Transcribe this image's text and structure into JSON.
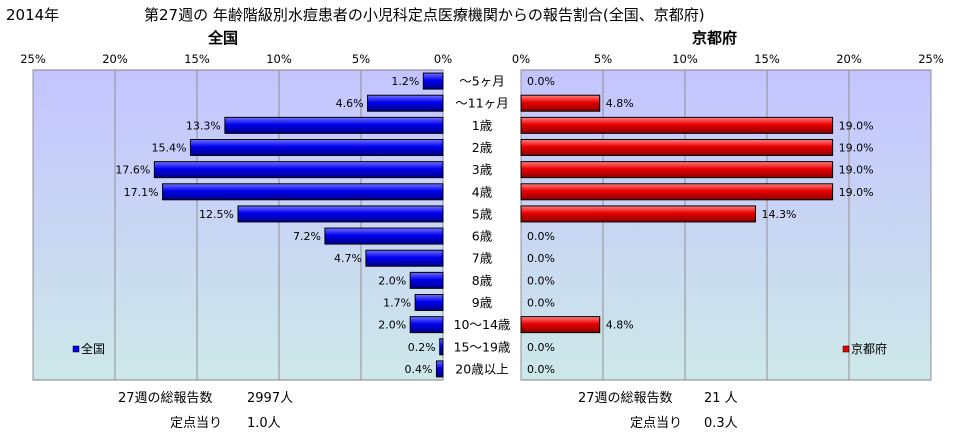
{
  "header": {
    "year": "2014年",
    "title": "第27週の 年齢階級別水痘患者の小児科定点医療機関からの報告割合(全国、京都府)"
  },
  "colors": {
    "plot_gradient_top": "#c4c4ff",
    "plot_gradient_bottom": "#cde8e8",
    "national_bar": "#0000ee",
    "kyoto_bar": "#e80000",
    "grid": "#909090"
  },
  "chart_data": [
    {
      "type": "bar",
      "orientation": "horizontal",
      "direction": "right-to-left",
      "title": "全国",
      "legend": "全国",
      "legend_position": "bottom-left",
      "xlim": [
        0,
        25
      ],
      "xticks": [
        "25%",
        "20%",
        "15%",
        "10%",
        "5%",
        "0%"
      ],
      "grid": true,
      "categories": [
        "～5ヶ月",
        "～11ヶ月",
        "1歳",
        "2歳",
        "3歳",
        "4歳",
        "5歳",
        "6歳",
        "7歳",
        "8歳",
        "9歳",
        "10～14歳",
        "15～19歳",
        "20歳以上"
      ],
      "values": [
        1.2,
        4.6,
        13.3,
        15.4,
        17.6,
        17.1,
        12.5,
        7.2,
        4.7,
        2.0,
        1.7,
        2.0,
        0.2,
        0.4
      ],
      "value_labels": [
        "1.2%",
        "4.6%",
        "13.3%",
        "15.4%",
        "17.6%",
        "17.1%",
        "12.5%",
        "7.2%",
        "4.7%",
        "2.0%",
        "1.7%",
        "2.0%",
        "0.2%",
        "0.4%"
      ]
    },
    {
      "type": "bar",
      "orientation": "horizontal",
      "direction": "left-to-right",
      "title": "京都府",
      "legend": "京都府",
      "legend_position": "bottom-right",
      "xlim": [
        0,
        25
      ],
      "xticks": [
        "0%",
        "5%",
        "10%",
        "15%",
        "20%",
        "25%"
      ],
      "grid": true,
      "categories": [
        "～5ヶ月",
        "～11ヶ月",
        "1歳",
        "2歳",
        "3歳",
        "4歳",
        "5歳",
        "6歳",
        "7歳",
        "8歳",
        "9歳",
        "10～14歳",
        "15～19歳",
        "20歳以上"
      ],
      "values": [
        0.0,
        4.8,
        19.0,
        19.0,
        19.0,
        19.0,
        14.3,
        0.0,
        0.0,
        0.0,
        0.0,
        4.8,
        0.0,
        0.0
      ],
      "value_labels": [
        "0.0%",
        "4.8%",
        "19.0%",
        "19.0%",
        "19.0%",
        "19.0%",
        "14.3%",
        "0.0%",
        "0.0%",
        "0.0%",
        "0.0%",
        "4.8%",
        "0.0%",
        "0.0%"
      ]
    }
  ],
  "summary": {
    "national": {
      "total_label": "27週の総報告数",
      "total_value": "2997人",
      "per_site_label": "定点当り",
      "per_site_value": "1.0人"
    },
    "kyoto": {
      "total_label": "27週の総報告数",
      "total_value": "21 人",
      "per_site_label": "定点当り",
      "per_site_value": "0.3人"
    }
  }
}
